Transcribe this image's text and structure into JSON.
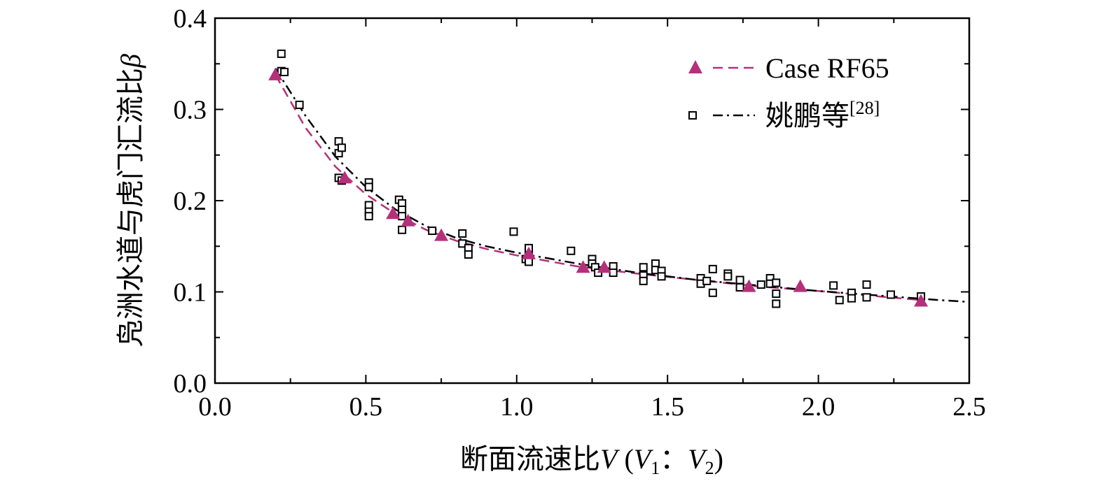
{
  "chart_data": {
    "type": "scatter",
    "xlabel": "断面流速比V (V1：V2)",
    "xlabel_parts": {
      "main": "断面流速比",
      "v": "V",
      "open": " (",
      "v1": "V",
      "sub1": "1",
      "sep": "：",
      "v2": "V",
      "sub2": "2",
      "close": ")"
    },
    "ylabel": "凫洲水道与虎门汇流比β",
    "ylabel_parts": {
      "main": "凫洲水道与虎门汇流比",
      "beta": "β"
    },
    "xlim": [
      0,
      2.5
    ],
    "ylim": [
      0,
      0.4
    ],
    "x_ticks": [
      "0.0",
      "0.5",
      "1.0",
      "1.5",
      "2.0",
      "2.5"
    ],
    "y_ticks": [
      "0.0",
      "0.1",
      "0.2",
      "0.3",
      "0.4"
    ],
    "legend_position": "top-right",
    "series": [
      {
        "name": "Case RF65",
        "color": "#b5307a",
        "marker": "triangle",
        "line": "dashed",
        "points": [
          [
            0.2,
            0.338
          ],
          [
            0.43,
            0.225
          ],
          [
            0.59,
            0.186
          ],
          [
            0.64,
            0.178
          ],
          [
            0.75,
            0.162
          ],
          [
            1.04,
            0.142
          ],
          [
            1.22,
            0.127
          ],
          [
            1.29,
            0.127
          ],
          [
            1.77,
            0.106
          ],
          [
            1.94,
            0.106
          ],
          [
            2.34,
            0.09
          ]
        ],
        "fit_line": [
          [
            0.2,
            0.338
          ],
          [
            0.3,
            0.28
          ],
          [
            0.4,
            0.237
          ],
          [
            0.5,
            0.207
          ],
          [
            0.6,
            0.185
          ],
          [
            0.7,
            0.168
          ],
          [
            0.8,
            0.156
          ],
          [
            0.9,
            0.147
          ],
          [
            1.0,
            0.14
          ],
          [
            1.2,
            0.128
          ],
          [
            1.4,
            0.12
          ],
          [
            1.6,
            0.113
          ],
          [
            1.8,
            0.106
          ],
          [
            2.0,
            0.101
          ],
          [
            2.2,
            0.095
          ],
          [
            2.34,
            0.091
          ]
        ]
      },
      {
        "name": "姚鹏等",
        "name_sup": "[28]",
        "color": "#000000",
        "marker": "square",
        "line": "dashdot",
        "points": [
          [
            0.22,
            0.361
          ],
          [
            0.22,
            0.342
          ],
          [
            0.23,
            0.341
          ],
          [
            0.28,
            0.305
          ],
          [
            0.41,
            0.265
          ],
          [
            0.41,
            0.252
          ],
          [
            0.42,
            0.258
          ],
          [
            0.41,
            0.225
          ],
          [
            0.42,
            0.222
          ],
          [
            0.51,
            0.22
          ],
          [
            0.51,
            0.215
          ],
          [
            0.51,
            0.195
          ],
          [
            0.51,
            0.188
          ],
          [
            0.51,
            0.183
          ],
          [
            0.61,
            0.201
          ],
          [
            0.62,
            0.197
          ],
          [
            0.62,
            0.19
          ],
          [
            0.62,
            0.183
          ],
          [
            0.62,
            0.168
          ],
          [
            0.72,
            0.167
          ],
          [
            0.82,
            0.164
          ],
          [
            0.82,
            0.153
          ],
          [
            0.84,
            0.148
          ],
          [
            0.84,
            0.141
          ],
          [
            0.99,
            0.166
          ],
          [
            1.04,
            0.148
          ],
          [
            1.04,
            0.14
          ],
          [
            1.03,
            0.136
          ],
          [
            1.04,
            0.133
          ],
          [
            1.18,
            0.145
          ],
          [
            1.25,
            0.136
          ],
          [
            1.25,
            0.131
          ],
          [
            1.26,
            0.127
          ],
          [
            1.27,
            0.121
          ],
          [
            1.32,
            0.128
          ],
          [
            1.32,
            0.121
          ],
          [
            1.42,
            0.127
          ],
          [
            1.42,
            0.118
          ],
          [
            1.42,
            0.112
          ],
          [
            1.46,
            0.131
          ],
          [
            1.46,
            0.124
          ],
          [
            1.48,
            0.123
          ],
          [
            1.48,
            0.117
          ],
          [
            1.61,
            0.115
          ],
          [
            1.61,
            0.109
          ],
          [
            1.63,
            0.112
          ],
          [
            1.65,
            0.125
          ],
          [
            1.65,
            0.099
          ],
          [
            1.7,
            0.12
          ],
          [
            1.7,
            0.117
          ],
          [
            1.74,
            0.113
          ],
          [
            1.74,
            0.105
          ],
          [
            1.81,
            0.108
          ],
          [
            1.84,
            0.115
          ],
          [
            1.84,
            0.109
          ],
          [
            1.86,
            0.11
          ],
          [
            1.86,
            0.098
          ],
          [
            1.86,
            0.087
          ],
          [
            2.05,
            0.107
          ],
          [
            2.07,
            0.091
          ],
          [
            2.11,
            0.099
          ],
          [
            2.11,
            0.093
          ],
          [
            2.16,
            0.108
          ],
          [
            2.16,
            0.094
          ],
          [
            2.24,
            0.097
          ],
          [
            2.34,
            0.095
          ]
        ],
        "fit_line": [
          [
            0.2,
            0.345
          ],
          [
            0.3,
            0.293
          ],
          [
            0.4,
            0.248
          ],
          [
            0.5,
            0.215
          ],
          [
            0.6,
            0.19
          ],
          [
            0.7,
            0.172
          ],
          [
            0.8,
            0.159
          ],
          [
            0.9,
            0.15
          ],
          [
            1.0,
            0.143
          ],
          [
            1.2,
            0.131
          ],
          [
            1.4,
            0.121
          ],
          [
            1.6,
            0.113
          ],
          [
            1.8,
            0.107
          ],
          [
            2.0,
            0.101
          ],
          [
            2.2,
            0.096
          ],
          [
            2.4,
            0.091
          ],
          [
            2.5,
            0.089
          ]
        ]
      }
    ]
  }
}
